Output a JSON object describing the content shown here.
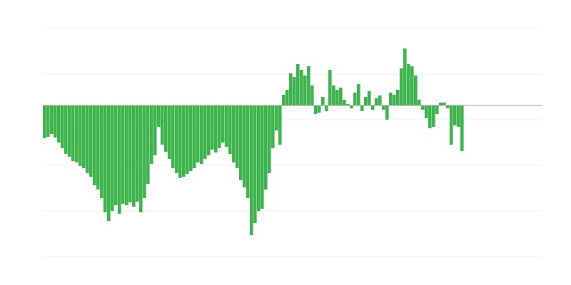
{
  "chart_data": {
    "type": "bar",
    "color": "#3cb44b",
    "grid": true,
    "ylim": [
      -212,
      108
    ],
    "yticks": [
      108,
      44,
      -20,
      -84,
      -148,
      -212
    ],
    "categories": [
      null,
      null,
      null,
      null,
      null,
      null,
      null,
      null,
      null,
      null,
      null,
      null,
      null,
      null,
      null,
      null,
      null,
      null,
      null,
      null,
      null,
      null,
      null,
      null,
      null,
      null,
      null,
      null,
      null,
      null,
      null,
      null,
      null,
      null,
      null,
      null,
      null,
      null,
      null,
      null,
      null,
      null,
      null,
      null,
      null,
      null,
      null,
      null,
      null,
      null,
      null,
      null,
      null,
      null,
      null,
      null,
      null,
      null,
      null,
      null,
      null,
      null,
      null,
      null,
      null,
      null,
      null,
      null,
      null,
      null,
      null,
      null,
      null,
      null,
      null,
      null,
      null,
      null,
      null,
      null,
      null,
      null,
      null,
      null,
      null,
      null,
      null,
      null,
      null,
      null,
      null,
      null,
      null,
      null,
      null,
      null,
      null,
      null,
      null,
      null,
      null,
      null,
      null,
      null,
      null,
      null,
      null,
      null,
      null,
      null,
      null,
      null,
      null,
      null,
      null,
      null,
      null,
      null,
      null,
      null,
      null,
      null,
      null,
      null,
      null,
      null,
      null,
      null,
      null,
      null,
      null,
      null,
      null,
      null,
      null,
      null,
      null,
      null,
      null,
      null
    ],
    "values": [
      -46,
      -44,
      -40,
      -45,
      -52,
      -60,
      -68,
      -72,
      -78,
      -80,
      -85,
      -88,
      -95,
      -100,
      -112,
      -118,
      -130,
      -150,
      -162,
      -148,
      -140,
      -152,
      -138,
      -140,
      -136,
      -142,
      -135,
      -150,
      -130,
      -110,
      -82,
      -70,
      -30,
      -55,
      -65,
      -75,
      -88,
      -95,
      -102,
      -100,
      -96,
      -92,
      -88,
      -80,
      -82,
      -75,
      -70,
      -62,
      -66,
      -60,
      -52,
      -58,
      -68,
      -80,
      -88,
      -105,
      -115,
      -130,
      -182,
      -165,
      -148,
      -145,
      -118,
      -95,
      -60,
      -35,
      -55,
      15,
      22,
      45,
      40,
      58,
      50,
      42,
      55,
      28,
      -12,
      -10,
      12,
      -8,
      50,
      28,
      22,
      25,
      8,
      2,
      -4,
      18,
      30,
      -8,
      12,
      20,
      -6,
      10,
      14,
      -6,
      -20,
      18,
      15,
      22,
      52,
      80,
      58,
      55,
      42,
      8,
      -6,
      -18,
      -32,
      -30,
      -12,
      4,
      4,
      -4,
      -55,
      -28,
      -30,
      -64,
      null,
      null,
      null,
      null,
      null,
      null,
      null,
      null,
      null,
      null,
      null,
      null,
      null,
      null,
      null,
      null,
      null,
      null,
      null,
      null,
      null,
      null
    ]
  }
}
